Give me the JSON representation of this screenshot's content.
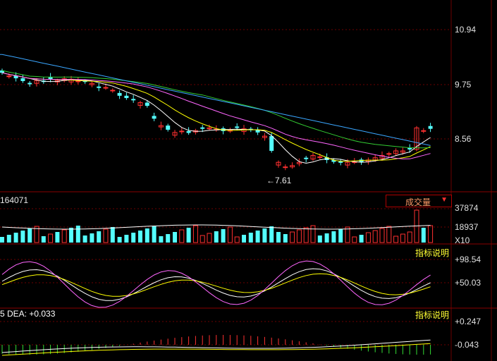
{
  "price_axis": {
    "labels": [
      "10.94",
      "9.75",
      "8.56"
    ],
    "low_marker": "7.61"
  },
  "volume_panel": {
    "last_value_label": "164071",
    "selector_label": "成交量",
    "selector_arrow": "▼",
    "axis_labels": [
      "37874",
      "18937",
      "X10"
    ]
  },
  "kdj_panel": {
    "axis_labels": [
      "+98.54",
      "+50.03"
    ],
    "help_button": "指标说明"
  },
  "macd_panel": {
    "header_text": "5 DEA: +0.033",
    "axis_labels": [
      "+0.247",
      "-0.043"
    ],
    "help_button": "指标说明"
  },
  "colors": {
    "background": "#000000",
    "grid": "#6b0000",
    "up": "#ff3030",
    "down": "#54ffff",
    "ma5": "#ffffff",
    "ma10": "#ffff00",
    "ma20": "#ff66ff",
    "ma30": "#33cc33",
    "ma60": "#3aa6ff"
  },
  "chart_data": {
    "type": "line",
    "price_range": [
      7.61,
      10.94
    ],
    "note": "",
    "closes": [
      10.0,
      9.93,
      9.88,
      9.82,
      9.75,
      9.83,
      9.8,
      9.85,
      9.83,
      9.87,
      9.86,
      9.82,
      9.8,
      9.77,
      9.67,
      9.68,
      9.62,
      9.5,
      9.45,
      9.4,
      9.35,
      9.28,
      9.0,
      8.85,
      8.76,
      8.7,
      8.73,
      8.69,
      8.74,
      8.78,
      8.8,
      8.77,
      8.73,
      8.75,
      8.8,
      8.78,
      8.75,
      8.7,
      8.62,
      8.3,
      8.05,
      7.95,
      7.98,
      8.05,
      8.12,
      8.2,
      8.17,
      8.1,
      8.06,
      8.04,
      8.05,
      8.06,
      8.05,
      8.1,
      8.15,
      8.2,
      8.24,
      8.3,
      8.3,
      8.33,
      8.8,
      8.74,
      8.78
    ]
  }
}
